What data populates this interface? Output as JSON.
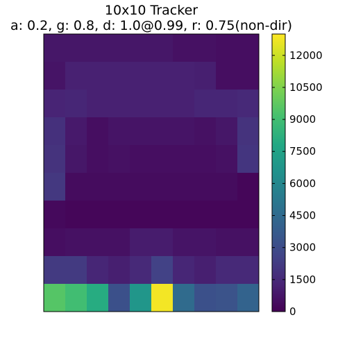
{
  "chart_data": {
    "type": "heatmap",
    "title": "10x10 Tracker",
    "subtitle": "a: 0.2, g: 0.8, d: 1.0@0.99, r: 0.75(non-dir)",
    "rows": 10,
    "cols": 10,
    "colormap": "viridis",
    "colorbar": {
      "min": 0,
      "max": 13000,
      "ticks": [
        0,
        1500,
        3000,
        4500,
        6000,
        7500,
        9000,
        10500,
        12000
      ]
    },
    "values": [
      [
        800,
        800,
        800,
        800,
        800,
        800,
        600,
        600,
        500,
        500
      ],
      [
        700,
        1200,
        1200,
        1200,
        1200,
        1200,
        1200,
        1100,
        500,
        500
      ],
      [
        1300,
        1400,
        1200,
        1200,
        1200,
        1200,
        1200,
        1400,
        1400,
        1500
      ],
      [
        1800,
        900,
        500,
        700,
        700,
        700,
        700,
        600,
        800,
        1900
      ],
      [
        1900,
        800,
        500,
        600,
        500,
        500,
        500,
        500,
        600,
        2000
      ],
      [
        2100,
        400,
        400,
        400,
        400,
        400,
        400,
        400,
        400,
        200
      ],
      [
        300,
        200,
        200,
        200,
        200,
        200,
        200,
        200,
        200,
        200
      ],
      [
        500,
        600,
        600,
        600,
        1000,
        1000,
        700,
        700,
        600,
        600
      ],
      [
        2200,
        2200,
        1400,
        1100,
        1500,
        2500,
        1400,
        1100,
        1500,
        1500
      ],
      [
        9500,
        9000,
        8000,
        3200,
        6800,
        12800,
        4500,
        3200,
        3300,
        4100
      ]
    ]
  }
}
